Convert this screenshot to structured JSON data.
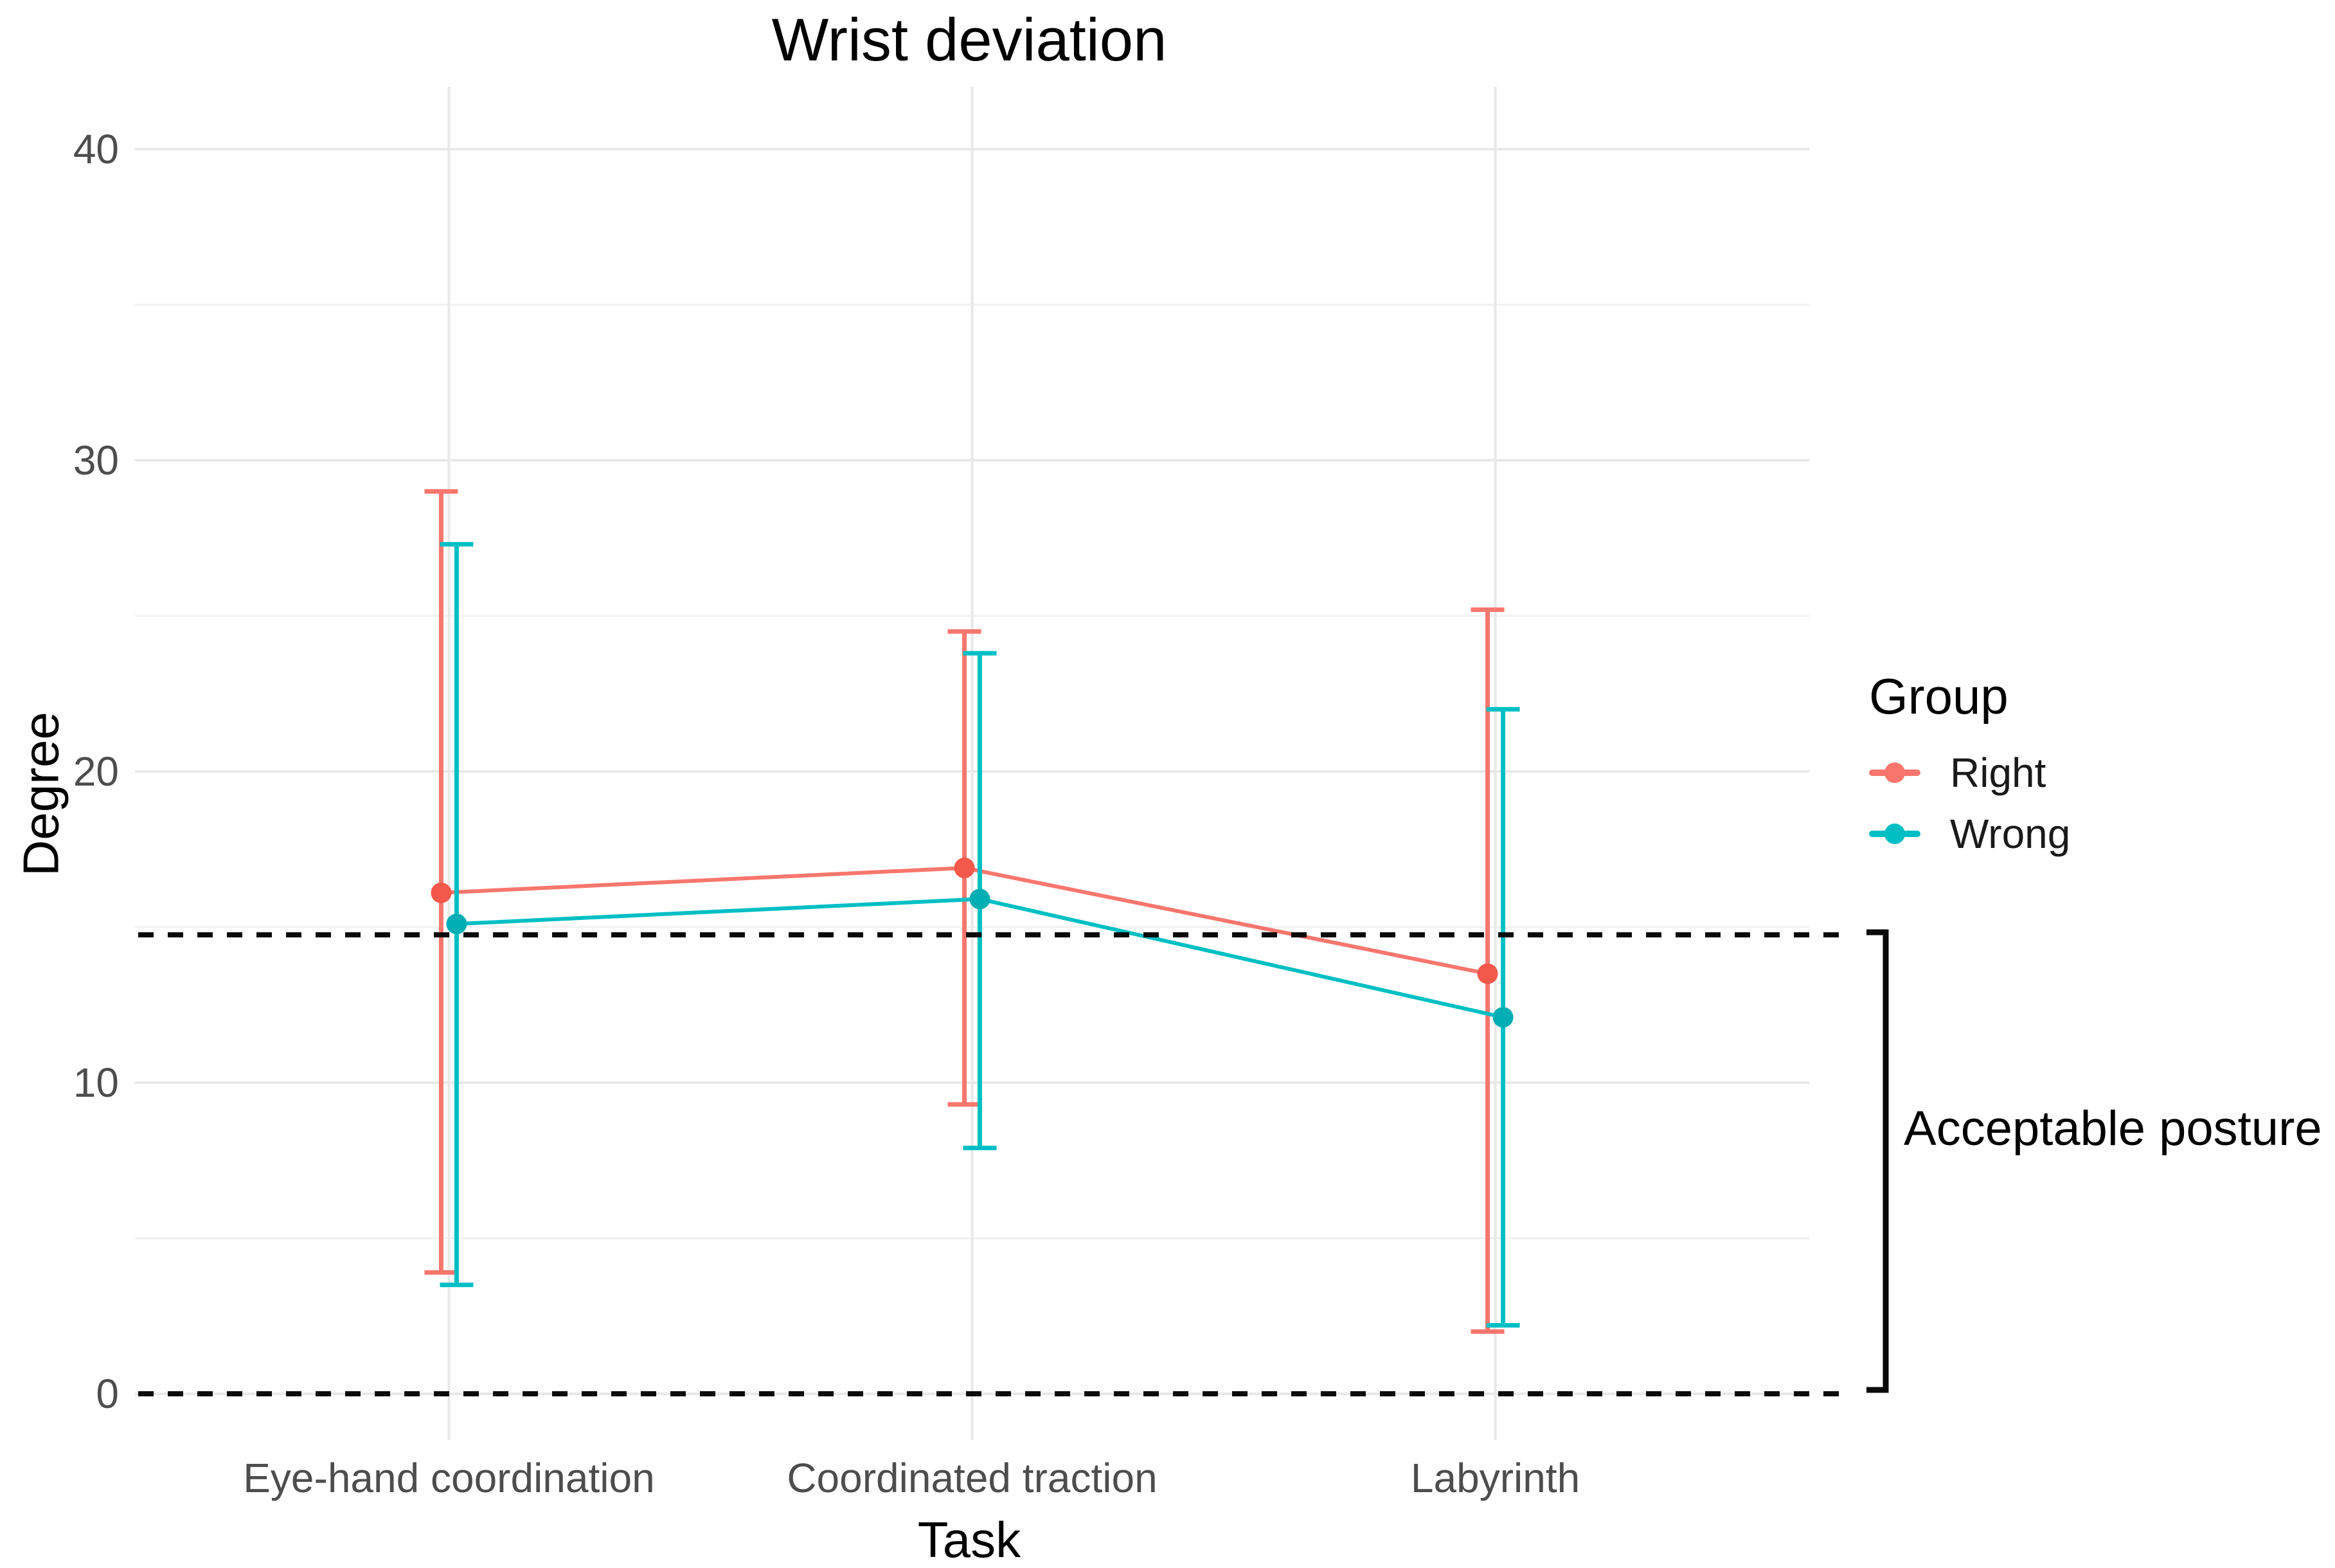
{
  "chart_data": {
    "type": "line",
    "title": "Wrist deviation",
    "xlabel": "Task",
    "ylabel": "Degree",
    "categories": [
      "Eye-hand coordination",
      "Coordinated traction",
      "Labyrinth"
    ],
    "y_ticks": [
      0,
      10,
      20,
      30,
      40
    ],
    "y_minor_ticks": [
      5,
      15,
      25,
      35
    ],
    "ylim": [
      0,
      40
    ],
    "grid": "horizontal major+minor, vertical line per category, no axis lines",
    "legend": {
      "title": "Group",
      "position": "right"
    },
    "series": [
      {
        "name": "Right",
        "color": "#F8766D",
        "marker_color": "#F4584A",
        "means": [
          16.1,
          16.9,
          13.5
        ],
        "ci_low": [
          3.9,
          9.3,
          2.0
        ],
        "ci_high": [
          29.0,
          24.5,
          25.2
        ]
      },
      {
        "name": "Wrong",
        "color": "#00BFC4",
        "marker_color": "#00AEB4",
        "means": [
          15.1,
          15.9,
          12.1
        ],
        "ci_low": [
          3.5,
          7.9,
          2.2
        ],
        "ci_high": [
          27.3,
          23.8,
          22.0
        ]
      }
    ],
    "annotations": {
      "dashed_lines_y": [
        14.75,
        0
      ],
      "dashed_line_color": "#0a0a0a",
      "bracket_label": "Acceptable posture",
      "bracket_range_y": [
        14.75,
        0
      ]
    }
  }
}
